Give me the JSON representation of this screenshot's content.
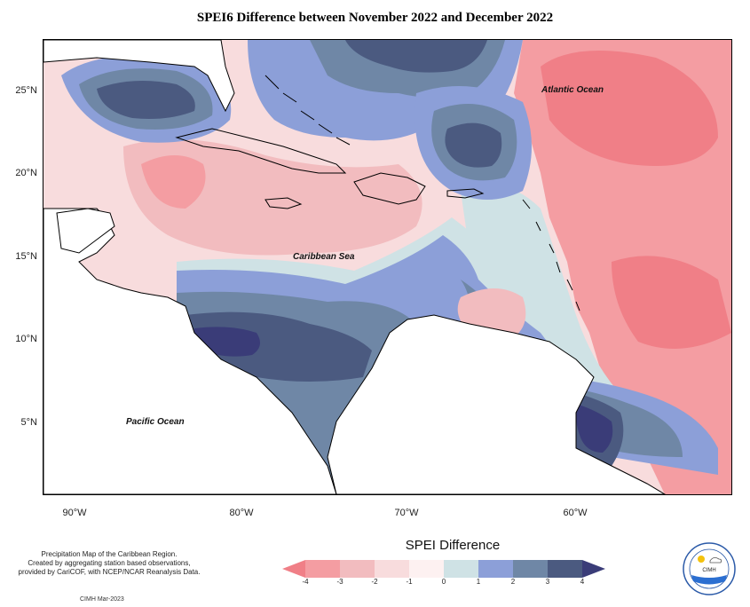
{
  "title": "SPEI6 Difference between November 2022 and December 2022",
  "map": {
    "region": "Caribbean",
    "lat_labels": [
      "25°N",
      "20°N",
      "15°N",
      "10°N",
      "5°N"
    ],
    "lon_labels": [
      "90°W",
      "80°W",
      "70°W",
      "60°W"
    ],
    "place_labels": {
      "atlantic": "Atlantic Ocean",
      "caribbean": "Caribbean Sea",
      "pacific": "Pacific Ocean"
    }
  },
  "legend": {
    "title": "SPEI Difference",
    "ticks": [
      "-4",
      "-3",
      "-2",
      "-1",
      "0",
      "1",
      "2",
      "3",
      "4"
    ],
    "colors": {
      "lt_-4": "#f07f87",
      "-4_-3": "#f49da2",
      "-3_-2": "#f2bcbf",
      "-2_-1": "#f8dcdd",
      "-1_0": "#fdf1f1",
      "0_1": "#cfe2e5",
      "1_2": "#8c9fd8",
      "2_3": "#6f87a6",
      "3_4": "#4b5a80",
      "gt_4": "#3a3c78"
    }
  },
  "credits": {
    "line1": "Precipitation Map of the Caribbean Region.",
    "line2": "Created by aggregating station based observations,",
    "line3": "provided by CariCOF, with NCEP/NCAR Reanalysis Data."
  },
  "footer": "CIMH Mar-2023",
  "logo": {
    "text": "CIMH",
    "icon": "cimh-logo"
  }
}
